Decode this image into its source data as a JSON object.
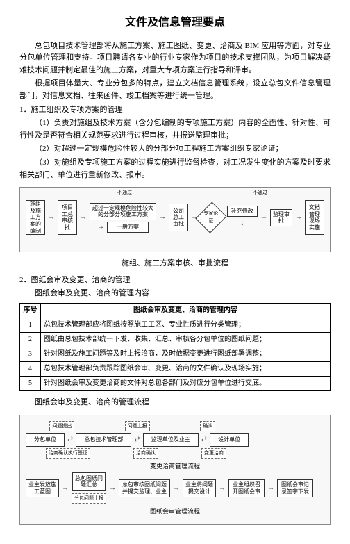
{
  "title": "文件及信息管理要点",
  "para1": "总包项目技术管理部将从施工方案、施工图纸、变更、洽商及 BIM 应用等方面，对专业分包单位管理和支持。项目聘请各专业的行业专家作为项目的技术支撑团队，为项目解决疑难技术问题并制定最佳的施工方案，对重大专项方案进行指导和评审。",
  "para2": "根据项目体量大、专业分包多的特点，建立文档信息管理系统，设立总包文件信息管理部门，对信息文档、往来函件、竣工档案等进行统一管理。",
  "sec1": "1．施工组织及专项方案的管理",
  "sec1_1": "（1）负责对施组及技术方案（含分包编制的专项施工方案）内容的全面性、针对性、可行性及是否符合相关规范要求进行过程审核，并报送监理审批；",
  "sec1_2": "（2）对超过一定规模危险性较大的分部分项工程施工方案组织专家论证；",
  "sec1_3": "（3）对施组及专项施工方案的过程实施进行监督检查，对工况发生变化的方案及时要求相关部门、单位进行重新修改、报审。",
  "flow1": {
    "nodes": {
      "n1": "施组及施工方案的编制",
      "n2": "项目工总审核批",
      "n3": "超过一定规模危险性较大的分部分项施工方案",
      "n4": "一般方案",
      "n5": "公司总工审批",
      "n6": "专家论证",
      "n7": "补充修改",
      "n8": "监理审批",
      "n9": "文档管理现场实施",
      "pass": "不通过",
      "pass2": "不通过"
    },
    "caption": "施组、施工方案审核、审批流程"
  },
  "sec2": "2．图纸会审及变更、洽商的管理",
  "sec2_sub1": "图纸会审及变更、洽商的管理内容",
  "table": {
    "headers": [
      "序号",
      "图纸会审及变更、洽商的管理内容"
    ],
    "rows": [
      [
        "1",
        "总包技术管理部应将图纸按照施工工区、专业性质进行分类管理；"
      ],
      [
        "2",
        "图纸由总包技术部统一下发、收集、汇总、审核各分包单位的图纸问题；"
      ],
      [
        "3",
        "针对图纸及施工问题等及时上报洽商，及时依据变更进行图纸部署调整；"
      ],
      [
        "4",
        "总包技术管理部负责跟踪图纸会审、变更、洽商的文件确认及现场实施；"
      ],
      [
        "5",
        "针对图纸会审及变更洽商的文件对总包各部门及对应分包单位进行交底。"
      ]
    ]
  },
  "sec2_sub2": "图纸会审及变更、洽商的管理流程",
  "flow2": {
    "top": {
      "n1": "分包单位",
      "d1a": "问题提出",
      "d1b": "洽商确认执行签证",
      "n2": "总包技术管理部",
      "d2a": "问题上报",
      "d2b": "洽商确认",
      "n3": "监理单位及业主",
      "d3": "确认",
      "d3b": "变更洽商",
      "n4": "设计单位"
    },
    "mid_caption": "变更洽商管理流程",
    "bottom": {
      "n1": "业主发放施工蓝图",
      "n2": "总包图纸问题汇总",
      "d2": "分包问题上报",
      "n3": "总包审核图纸问题并提交监理、业主",
      "n4": "业主将问题提交设计",
      "n5": "业主组织召开图纸会审",
      "n6": "图纸会审记录签字下发"
    },
    "bottom_caption": "图纸会审管理流程"
  }
}
